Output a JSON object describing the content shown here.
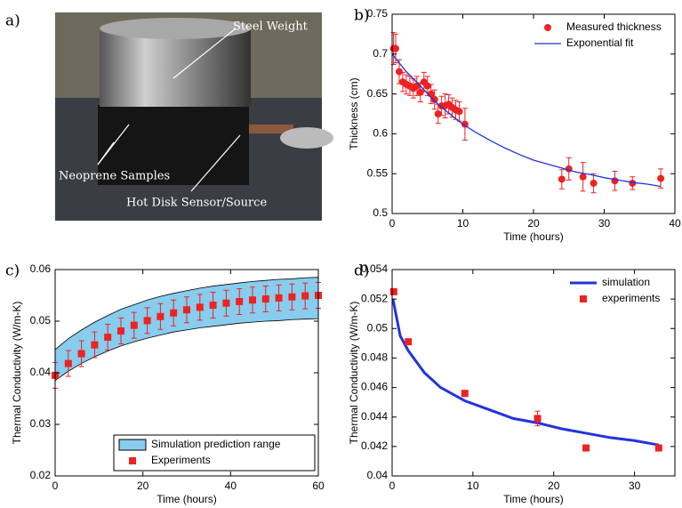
{
  "photo": {
    "panel_label": "a)",
    "labels": [
      "Steel Weight",
      "Neoprene Samples",
      "Hot Disk Sensor/Source"
    ]
  },
  "chart_data": [
    {
      "type": "line",
      "panel_label": "b)",
      "xlabel": "Time (hours)",
      "ylabel": "Thickness (cm)",
      "xlim": [
        0,
        40
      ],
      "ylim": [
        0.5,
        0.75
      ],
      "xticks": [
        0,
        10,
        20,
        30,
        40
      ],
      "yticks": [
        0.5,
        0.55,
        0.6,
        0.65,
        0.7,
        0.75
      ],
      "legend": "upper right",
      "series": [
        {
          "name": "Measured thickness",
          "type": "scatter",
          "marker": "circle",
          "color": "#ee2222",
          "x": [
            0.2,
            0.5,
            1,
            1.5,
            2,
            2.5,
            3,
            3.5,
            4,
            4.5,
            5,
            5.5,
            6,
            6.5,
            7,
            7.5,
            8,
            8.5,
            9,
            9.5,
            10.3,
            24,
            25,
            27,
            28.5,
            31.5,
            34,
            38
          ],
          "values": [
            0.707,
            0.707,
            0.678,
            0.665,
            0.662,
            0.66,
            0.657,
            0.66,
            0.652,
            0.665,
            0.66,
            0.65,
            0.643,
            0.625,
            0.635,
            0.635,
            0.637,
            0.633,
            0.63,
            0.628,
            0.612,
            0.543,
            0.556,
            0.546,
            0.538,
            0.541,
            0.538,
            0.544
          ],
          "errors": [
            0.02,
            0.018,
            0.015,
            0.012,
            0.012,
            0.012,
            0.012,
            0.012,
            0.012,
            0.012,
            0.012,
            0.012,
            0.012,
            0.012,
            0.012,
            0.015,
            0.012,
            0.012,
            0.012,
            0.012,
            0.02,
            0.012,
            0.014,
            0.018,
            0.012,
            0.012,
            0.008,
            0.012
          ]
        },
        {
          "name": "Exponential fit",
          "type": "line",
          "color": "#2233dd",
          "x": [
            0,
            2,
            4,
            6,
            8,
            10,
            12,
            14,
            16,
            18,
            20,
            22,
            24,
            26,
            28,
            30,
            32,
            34,
            36,
            38
          ],
          "values": [
            0.7,
            0.678,
            0.66,
            0.641,
            0.626,
            0.612,
            0.601,
            0.591,
            0.582,
            0.574,
            0.567,
            0.562,
            0.557,
            0.552,
            0.549,
            0.545,
            0.542,
            0.539,
            0.537,
            0.534
          ]
        }
      ]
    },
    {
      "type": "line",
      "panel_label": "c)",
      "xlabel": "Time (hours)",
      "ylabel": "Thermal Conductivity (W/m-K)",
      "xlim": [
        0,
        60
      ],
      "ylim": [
        0.02,
        0.06
      ],
      "xticks": [
        0,
        20,
        40,
        60
      ],
      "yticks": [
        0.02,
        0.03,
        0.04,
        0.05,
        0.06
      ],
      "legend": "lower right",
      "series": [
        {
          "name": "Simulation prediction range",
          "type": "band",
          "color": "#88ccee",
          "x": [
            0,
            3,
            6,
            9,
            12,
            15,
            18,
            21,
            24,
            27,
            30,
            33,
            36,
            39,
            42,
            45,
            48,
            51,
            54,
            57,
            60
          ],
          "upper": [
            0.0445,
            0.0466,
            0.0483,
            0.0498,
            0.0511,
            0.0523,
            0.0532,
            0.0541,
            0.0548,
            0.0554,
            0.0559,
            0.0564,
            0.0568,
            0.0571,
            0.0574,
            0.0577,
            0.0579,
            0.0581,
            0.0582,
            0.0584,
            0.0585
          ],
          "lower": [
            0.0385,
            0.0403,
            0.0418,
            0.0431,
            0.0442,
            0.0452,
            0.046,
            0.0467,
            0.0473,
            0.0479,
            0.0483,
            0.0487,
            0.049,
            0.0493,
            0.0496,
            0.0498,
            0.05,
            0.0501,
            0.0503,
            0.0504,
            0.0505
          ]
        },
        {
          "name": "Experiments",
          "type": "scatter",
          "marker": "square",
          "color": "#ee2222",
          "x": [
            0,
            3,
            6,
            9,
            12,
            15,
            18,
            21,
            24,
            27,
            30,
            33,
            36,
            39,
            42,
            45,
            48,
            51,
            54,
            57,
            60
          ],
          "values": [
            0.0395,
            0.0418,
            0.0437,
            0.0454,
            0.0469,
            0.0481,
            0.0492,
            0.0501,
            0.0509,
            0.0516,
            0.0522,
            0.0527,
            0.0531,
            0.0535,
            0.0538,
            0.0541,
            0.0543,
            0.0545,
            0.0547,
            0.0549,
            0.055
          ],
          "errors": [
            0.0025,
            0.0025,
            0.0025,
            0.0025,
            0.0025,
            0.0025,
            0.0025,
            0.0025,
            0.0025,
            0.0025,
            0.0025,
            0.0025,
            0.0025,
            0.0025,
            0.0025,
            0.0025,
            0.0025,
            0.0025,
            0.0025,
            0.0025,
            0.0025
          ]
        }
      ]
    },
    {
      "type": "line",
      "panel_label": "d)",
      "xlabel": "Time (hours)",
      "ylabel": "Thermal Conductivity (W/m-K)",
      "xlim": [
        0,
        35
      ],
      "ylim": [
        0.04,
        0.054
      ],
      "xticks": [
        0,
        10,
        20,
        30
      ],
      "yticks": [
        0.04,
        0.042,
        0.044,
        0.046,
        0.048,
        0.05,
        0.052,
        0.054
      ],
      "legend": "upper right",
      "series": [
        {
          "name": "simulation",
          "type": "line",
          "color": "#2233dd",
          "x": [
            0.1,
            1,
            2,
            4,
            6,
            9,
            12,
            15,
            18,
            21,
            24,
            27,
            30,
            33
          ],
          "values": [
            0.052,
            0.0495,
            0.0485,
            0.047,
            0.046,
            0.0451,
            0.0445,
            0.0439,
            0.0436,
            0.0432,
            0.0429,
            0.0426,
            0.0424,
            0.0421
          ]
        },
        {
          "name": "experiments",
          "type": "scatter",
          "marker": "square",
          "color": "#ee2222",
          "x": [
            0.2,
            2,
            9,
            18,
            24,
            33
          ],
          "values": [
            0.0525,
            0.0491,
            0.0456,
            0.0439,
            0.0419,
            0.0419
          ],
          "errors": [
            0.0002,
            0.0002,
            0.0002,
            0.0005,
            0.0002,
            0.0002
          ]
        }
      ]
    }
  ]
}
